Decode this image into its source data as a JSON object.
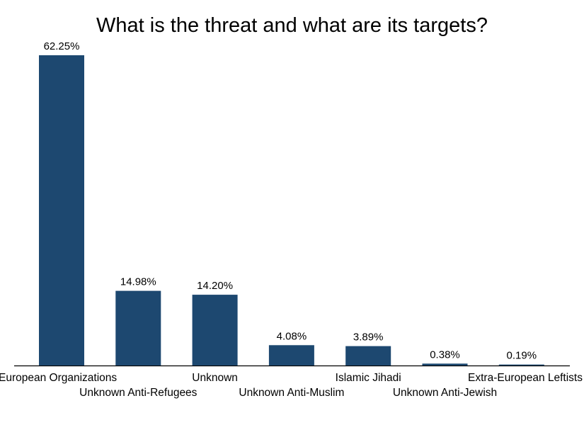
{
  "chart_data": {
    "type": "bar",
    "title": "What is the threat and what are its targets?",
    "categories": [
      "European Organizations",
      "Unknown Anti-Refugees",
      "Unknown",
      "Unknown Anti-Muslim",
      "Islamic Jihadi",
      "Unknown Anti-Jewish",
      "Extra-European Leftists"
    ],
    "values": [
      62.25,
      14.98,
      14.2,
      4.08,
      3.89,
      0.38,
      0.19
    ],
    "value_labels": [
      "62.25%",
      "14.98%",
      "14.20%",
      "4.08%",
      "3.89%",
      "0.38%",
      "0.19%"
    ],
    "xlabel": "",
    "ylabel": "",
    "ylim": [
      0,
      62.25
    ],
    "grid": false,
    "bar_color": "#1d4870"
  }
}
